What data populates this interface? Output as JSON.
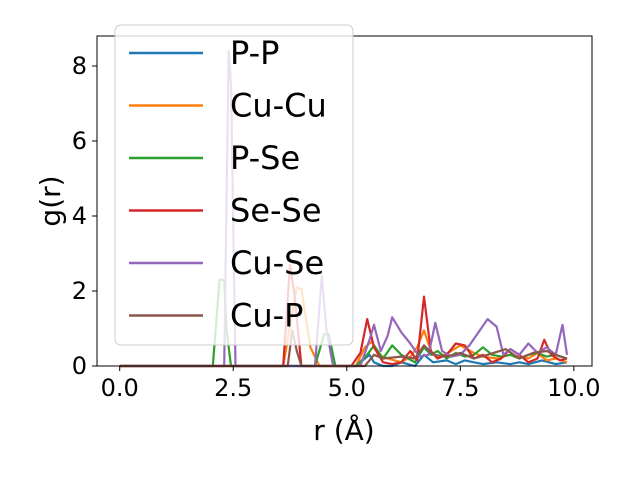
{
  "chart_data": {
    "type": "line",
    "title": "",
    "xlabel": "r (Å)",
    "ylabel": "g(r)",
    "xlim": [
      -0.5,
      10.4
    ],
    "ylim": [
      0,
      8.8
    ],
    "xticks": [
      0.0,
      2.5,
      5.0,
      7.5,
      10.0
    ],
    "xtick_labels": [
      "0.0",
      "2.5",
      "5.0",
      "7.5",
      "10.0"
    ],
    "yticks": [
      0,
      2,
      4,
      6,
      8
    ],
    "ytick_labels": [
      "0",
      "2",
      "4",
      "6",
      "8"
    ],
    "grid": false,
    "legend_position": "upper-left",
    "series": [
      {
        "name": "P-P",
        "color": "#1f77b4",
        "x": [
          0,
          5.0,
          5.2,
          5.4,
          5.5,
          5.6,
          5.8,
          6.0,
          6.2,
          6.5,
          6.7,
          6.9,
          7.2,
          7.4,
          7.6,
          7.8,
          8.0,
          8.3,
          8.6,
          8.8,
          9.0,
          9.3,
          9.6,
          9.85
        ],
        "y": [
          0,
          0,
          0,
          0.2,
          0.3,
          0.1,
          0,
          0,
          0.1,
          0,
          0.3,
          0.1,
          0.15,
          0.05,
          0.15,
          0.1,
          0.05,
          0.1,
          0.05,
          0.1,
          0.05,
          0.15,
          0.05,
          0.1
        ]
      },
      {
        "name": "Cu-Cu",
        "color": "#ff7f0e",
        "x": [
          0,
          3.6,
          3.9,
          4.0,
          4.2,
          4.4,
          5.2,
          5.4,
          5.55,
          5.7,
          5.9,
          6.2,
          6.4,
          6.55,
          6.7,
          6.85,
          7.0,
          7.3,
          7.5,
          7.65,
          7.8,
          8.0,
          8.3,
          8.6,
          8.8,
          9.0,
          9.2,
          9.4,
          9.6,
          9.85
        ],
        "y": [
          0,
          0,
          2.1,
          2.05,
          0.5,
          0,
          0,
          0.5,
          0.65,
          0.3,
          0.2,
          0.1,
          0.25,
          0.5,
          0.95,
          0.4,
          0.2,
          0.4,
          0.55,
          0.45,
          0.35,
          0.25,
          0.2,
          0.3,
          0.25,
          0.2,
          0.35,
          0.15,
          0.2,
          0.1
        ]
      },
      {
        "name": "P-Se",
        "color": "#2ca02c",
        "x": [
          0,
          2.05,
          2.2,
          2.3,
          2.35,
          2.45,
          4.3,
          4.5,
          4.6,
          4.75,
          5.2,
          5.45,
          5.6,
          5.8,
          6.0,
          6.2,
          6.5,
          6.7,
          6.85,
          7.0,
          7.2,
          7.4,
          7.6,
          7.8,
          8.0,
          8.2,
          8.4,
          8.6,
          8.8,
          9.0,
          9.2,
          9.4,
          9.6,
          9.85
        ],
        "y": [
          0,
          0,
          2.3,
          2.3,
          1.0,
          0,
          0,
          0.85,
          0.85,
          0,
          0,
          0.3,
          0.55,
          0.2,
          0.55,
          0.3,
          0.1,
          0.5,
          0.3,
          0.4,
          0.2,
          0.35,
          0.25,
          0.3,
          0.5,
          0.3,
          0.25,
          0.3,
          0.2,
          0.3,
          0.35,
          0.25,
          0.3,
          0.2
        ]
      },
      {
        "name": "Se-Se",
        "color": "#d62728",
        "x": [
          0,
          3.6,
          3.75,
          3.85,
          4.0,
          5.1,
          5.3,
          5.45,
          5.6,
          5.8,
          6.0,
          6.2,
          6.4,
          6.55,
          6.7,
          6.85,
          7.0,
          7.2,
          7.4,
          7.6,
          7.8,
          8.0,
          8.2,
          8.4,
          8.6,
          8.8,
          9.0,
          9.2,
          9.35,
          9.5,
          9.7,
          9.85
        ],
        "y": [
          0,
          0,
          2.7,
          1.9,
          0,
          0,
          0.35,
          1.25,
          0.5,
          0.1,
          0.05,
          0.1,
          0.4,
          0.15,
          1.85,
          0.4,
          0.2,
          0.3,
          0.6,
          0.55,
          0.2,
          0.3,
          0.1,
          0.2,
          0.45,
          0.3,
          0.1,
          0.2,
          0.7,
          0.3,
          0.15,
          0.2
        ]
      },
      {
        "name": "Cu-Se",
        "color": "#9467bd",
        "x": [
          0,
          2.3,
          2.4,
          2.45,
          2.55,
          4.3,
          4.45,
          4.55,
          4.7,
          5.3,
          5.5,
          5.6,
          5.75,
          5.9,
          6.0,
          6.2,
          6.4,
          6.6,
          6.8,
          6.95,
          7.1,
          7.3,
          7.5,
          7.7,
          7.9,
          8.1,
          8.3,
          8.45,
          8.6,
          8.8,
          9.0,
          9.2,
          9.4,
          9.6,
          9.75,
          9.85
        ],
        "y": [
          0,
          0,
          8.4,
          7.5,
          0,
          0,
          2.4,
          1.0,
          0,
          0,
          0.7,
          1.1,
          0.4,
          0.8,
          1.3,
          0.9,
          0.6,
          0.25,
          0.3,
          1.15,
          0.4,
          0.25,
          0.3,
          0.55,
          0.9,
          1.25,
          1.05,
          0.3,
          0.45,
          0.3,
          0.6,
          0.35,
          0.5,
          0.3,
          1.1,
          0.3
        ]
      },
      {
        "name": "Cu-P",
        "color": "#8c564b",
        "x": [
          0,
          3.7,
          3.8,
          3.9,
          4.0,
          5.4,
          5.6,
          5.8,
          6.2,
          6.5,
          6.7,
          6.9,
          7.2,
          7.5,
          7.8,
          8.1,
          8.5,
          8.8,
          9.1,
          9.4,
          9.7,
          9.85
        ],
        "y": [
          0,
          0,
          0.95,
          0.4,
          0,
          0,
          0.3,
          0.2,
          0.25,
          0.2,
          0.55,
          0.3,
          0.25,
          0.35,
          0.2,
          0.3,
          0.45,
          0.2,
          0.35,
          0.4,
          0.25,
          0.2
        ]
      }
    ]
  }
}
